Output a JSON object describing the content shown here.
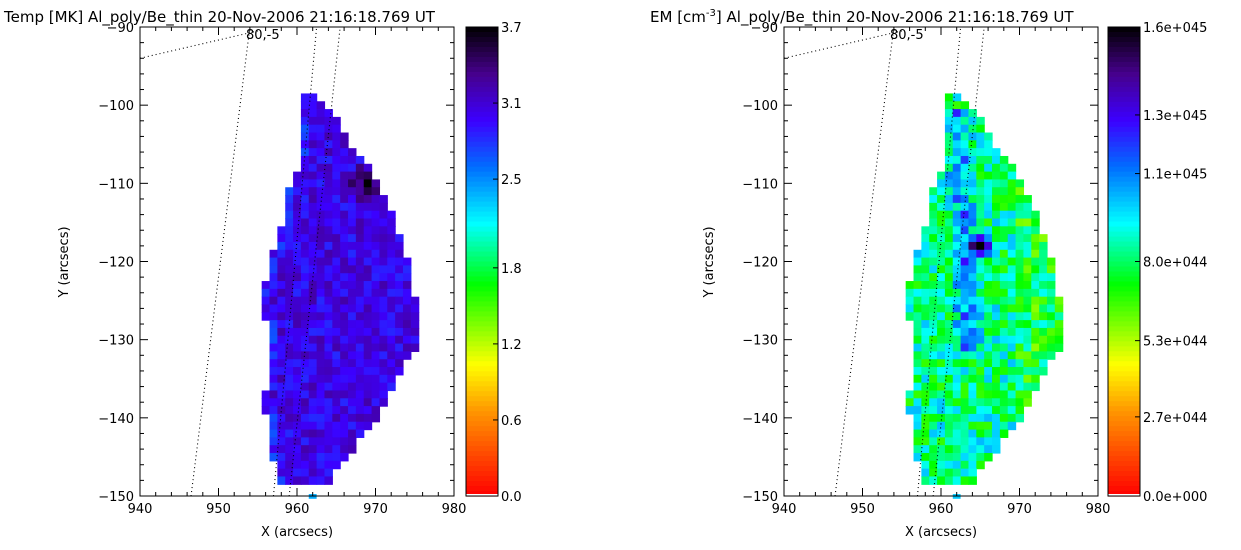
{
  "chart_data": [
    {
      "type": "heatmap",
      "title": "Temp [MK] Al_poly/Be_thin 20-Nov-2006 21:16:18.769 UT",
      "title_parts": [
        "Temp [MK] Al_poly/Be_thin 20-Nov-2006 21:16:18.769 UT"
      ],
      "xlabel": "X (arcsecs)",
      "ylabel": "Y (arcsecs)",
      "xlim": [
        940,
        980
      ],
      "ylim": [
        -150,
        -90
      ],
      "xticks": [
        "940",
        "950",
        "960",
        "970",
        "980"
      ],
      "yticks": [
        "-90",
        "-100",
        "-110",
        "-120",
        "-130",
        "-140",
        "-150"
      ],
      "grid_annotation": "80,-5",
      "colorbar": {
        "colormap": "rainbow",
        "range": [
          0.0,
          3.7
        ],
        "tick_labels": [
          "0.0",
          "0.6",
          "1.2",
          "1.8",
          "2.5",
          "3.1",
          "3.7"
        ],
        "tick_values": [
          0.0,
          0.6,
          1.2,
          1.8,
          2.5,
          3.1,
          3.7
        ]
      },
      "pixel_size_arcsec": 1.0,
      "values_description": "dominant value",
      "typical_value": 3.05,
      "peak": {
        "x": 969,
        "y": -110,
        "value": 3.7
      },
      "isolated_pixel": {
        "x": 962,
        "y": -150,
        "value": 2.4
      }
    },
    {
      "type": "heatmap",
      "title": "EM [cm-3] Al_poly/Be_thin 20-Nov-2006 21:16:18.769 UT",
      "title_parts": [
        "EM [cm",
        "-3",
        "] Al_poly/Be_thin 20-Nov-2006 21:16:18.769 UT"
      ],
      "xlabel": "X (arcsecs)",
      "ylabel": "Y (arcsecs)",
      "xlim": [
        940,
        980
      ],
      "ylim": [
        -150,
        -90
      ],
      "xticks": [
        "940",
        "950",
        "960",
        "970",
        "980"
      ],
      "yticks": [
        "-90",
        "-100",
        "-110",
        "-120",
        "-130",
        "-140",
        "-150"
      ],
      "grid_annotation": "80,-5",
      "colorbar": {
        "colormap": "rainbow",
        "range": [
          0.0,
          1.6e+45
        ],
        "tick_labels": [
          "0.0e+000",
          "2.7e+044",
          "5.3e+044",
          "8.0e+044",
          "1.1e+045",
          "1.3e+045",
          "1.6e+045"
        ],
        "tick_values": [
          0.0,
          2.7e+44,
          5.3e+44,
          8e+44,
          1.1e+45,
          1.3e+45,
          1.6e+45
        ]
      },
      "pixel_size_arcsec": 1.0,
      "typical_value": 8.5e+44,
      "peak": {
        "x": 965,
        "y": -118,
        "value": 1.6e+45
      },
      "isolated_pixel": {
        "x": 962,
        "y": -150,
        "value": 1e+45
      }
    }
  ],
  "region": {
    "rows": [
      {
        "y": -99,
        "x0": 961,
        "x1": 962
      },
      {
        "y": -100,
        "x0": 961,
        "x1": 963
      },
      {
        "y": -101,
        "x0": 961,
        "x1": 964
      },
      {
        "y": -102,
        "x0": 961,
        "x1": 965
      },
      {
        "y": -103,
        "x0": 961,
        "x1": 965
      },
      {
        "y": -104,
        "x0": 961,
        "x1": 966
      },
      {
        "y": -105,
        "x0": 961,
        "x1": 966
      },
      {
        "y": -106,
        "x0": 961,
        "x1": 967
      },
      {
        "y": -107,
        "x0": 961,
        "x1": 968
      },
      {
        "y": -108,
        "x0": 961,
        "x1": 969
      },
      {
        "y": -109,
        "x0": 960,
        "x1": 969
      },
      {
        "y": -110,
        "x0": 960,
        "x1": 970
      },
      {
        "y": -111,
        "x0": 959,
        "x1": 970
      },
      {
        "y": -112,
        "x0": 959,
        "x1": 971
      },
      {
        "y": -113,
        "x0": 959,
        "x1": 971
      },
      {
        "y": -114,
        "x0": 959,
        "x1": 972
      },
      {
        "y": -115,
        "x0": 959,
        "x1": 972
      },
      {
        "y": -116,
        "x0": 958,
        "x1": 972
      },
      {
        "y": -117,
        "x0": 958,
        "x1": 973
      },
      {
        "y": -118,
        "x0": 958,
        "x1": 973
      },
      {
        "y": -119,
        "x0": 957,
        "x1": 973
      },
      {
        "y": -120,
        "x0": 957,
        "x1": 974
      },
      {
        "y": -121,
        "x0": 957,
        "x1": 974
      },
      {
        "y": -122,
        "x0": 957,
        "x1": 974
      },
      {
        "y": -123,
        "x0": 956,
        "x1": 974
      },
      {
        "y": -124,
        "x0": 956,
        "x1": 974
      },
      {
        "y": -125,
        "x0": 956,
        "x1": 975
      },
      {
        "y": -126,
        "x0": 956,
        "x1": 975
      },
      {
        "y": -127,
        "x0": 956,
        "x1": 975
      },
      {
        "y": -128,
        "x0": 957,
        "x1": 975
      },
      {
        "y": -129,
        "x0": 957,
        "x1": 975
      },
      {
        "y": -130,
        "x0": 957,
        "x1": 975
      },
      {
        "y": -131,
        "x0": 957,
        "x1": 975
      },
      {
        "y": -132,
        "x0": 957,
        "x1": 974
      },
      {
        "y": -133,
        "x0": 957,
        "x1": 973
      },
      {
        "y": -134,
        "x0": 957,
        "x1": 973
      },
      {
        "y": -135,
        "x0": 957,
        "x1": 972
      },
      {
        "y": -136,
        "x0": 957,
        "x1": 972
      },
      {
        "y": -137,
        "x0": 956,
        "x1": 971
      },
      {
        "y": -138,
        "x0": 956,
        "x1": 971
      },
      {
        "y": -139,
        "x0": 956,
        "x1": 970
      },
      {
        "y": -140,
        "x0": 957,
        "x1": 970
      },
      {
        "y": -141,
        "x0": 957,
        "x1": 969
      },
      {
        "y": -142,
        "x0": 957,
        "x1": 968
      },
      {
        "y": -143,
        "x0": 957,
        "x1": 967
      },
      {
        "y": -144,
        "x0": 957,
        "x1": 967
      },
      {
        "y": -145,
        "x0": 957,
        "x1": 966
      },
      {
        "y": -146,
        "x0": 958,
        "x1": 965
      },
      {
        "y": -147,
        "x0": 958,
        "x1": 964
      },
      {
        "y": -148,
        "x0": 958,
        "x1": 964
      }
    ]
  },
  "overlay": {
    "lines_xy": [
      [
        [
          940,
          -94
        ],
        [
          955,
          -90.5
        ]
      ],
      [
        [
          946.5,
          -150
        ],
        [
          954,
          -90
        ]
      ],
      [
        [
          957,
          -150
        ],
        [
          962.5,
          -90
        ]
      ],
      [
        [
          959,
          -150
        ],
        [
          965.5,
          -90
        ]
      ]
    ]
  }
}
